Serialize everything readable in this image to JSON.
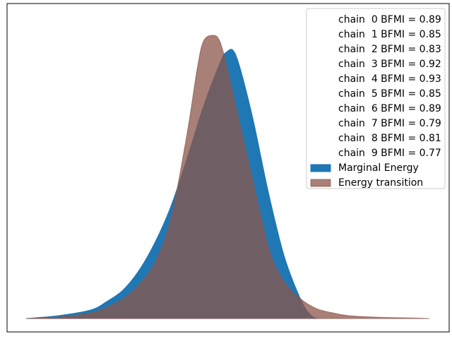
{
  "chart_data": {
    "type": "area",
    "title": "",
    "xlabel": "",
    "ylabel": "",
    "xticks": false,
    "yticks": false,
    "legend_position": "top-right",
    "bfmi_labels": [
      "chain  0 BFMI = 0.89",
      "chain  1 BFMI = 0.85",
      "chain  2 BFMI = 0.83",
      "chain  3 BFMI = 0.92",
      "chain  4 BFMI = 0.93",
      "chain  5 BFMI = 0.85",
      "chain  6 BFMI = 0.89",
      "chain  7 BFMI = 0.79",
      "chain  8 BFMI = 0.81",
      "chain  9 BFMI = 0.77"
    ],
    "bfmi_values": [
      0.89,
      0.85,
      0.83,
      0.92,
      0.93,
      0.85,
      0.89,
      0.79,
      0.81,
      0.77
    ],
    "series": [
      {
        "name": "Marginal Energy",
        "color": "#1f77b4",
        "opacity": 1.0,
        "x": [
          0.0,
          0.1,
          0.2,
          0.25,
          0.3,
          0.35,
          0.4,
          0.45,
          0.5,
          0.55,
          0.6,
          0.62,
          0.65,
          0.7,
          0.75,
          0.8,
          0.85,
          0.88,
          0.9
        ],
        "y": [
          0.0,
          0.01,
          0.03,
          0.06,
          0.1,
          0.17,
          0.27,
          0.4,
          0.57,
          0.75,
          0.9,
          0.94,
          0.93,
          0.72,
          0.45,
          0.22,
          0.07,
          0.015,
          0.0
        ]
      },
      {
        "name": "Energy transition",
        "color": "#8c564b",
        "opacity": 0.75,
        "x": [
          0.0,
          0.1,
          0.2,
          0.25,
          0.3,
          0.35,
          0.4,
          0.45,
          0.5,
          0.53,
          0.55,
          0.58,
          0.6,
          0.62,
          0.65,
          0.7,
          0.73,
          0.76,
          0.8,
          0.85,
          0.9,
          0.95,
          1.0,
          1.1,
          1.2,
          1.25
        ],
        "y": [
          0.0,
          0.005,
          0.02,
          0.04,
          0.07,
          0.12,
          0.2,
          0.36,
          0.66,
          0.88,
          0.98,
          1.0,
          0.98,
          0.9,
          0.75,
          0.5,
          0.35,
          0.22,
          0.13,
          0.07,
          0.035,
          0.02,
          0.01,
          0.004,
          0.002,
          0.0
        ]
      }
    ],
    "xlim": [
      -0.05,
      1.3
    ],
    "ylim": [
      0,
      1.06
    ]
  }
}
